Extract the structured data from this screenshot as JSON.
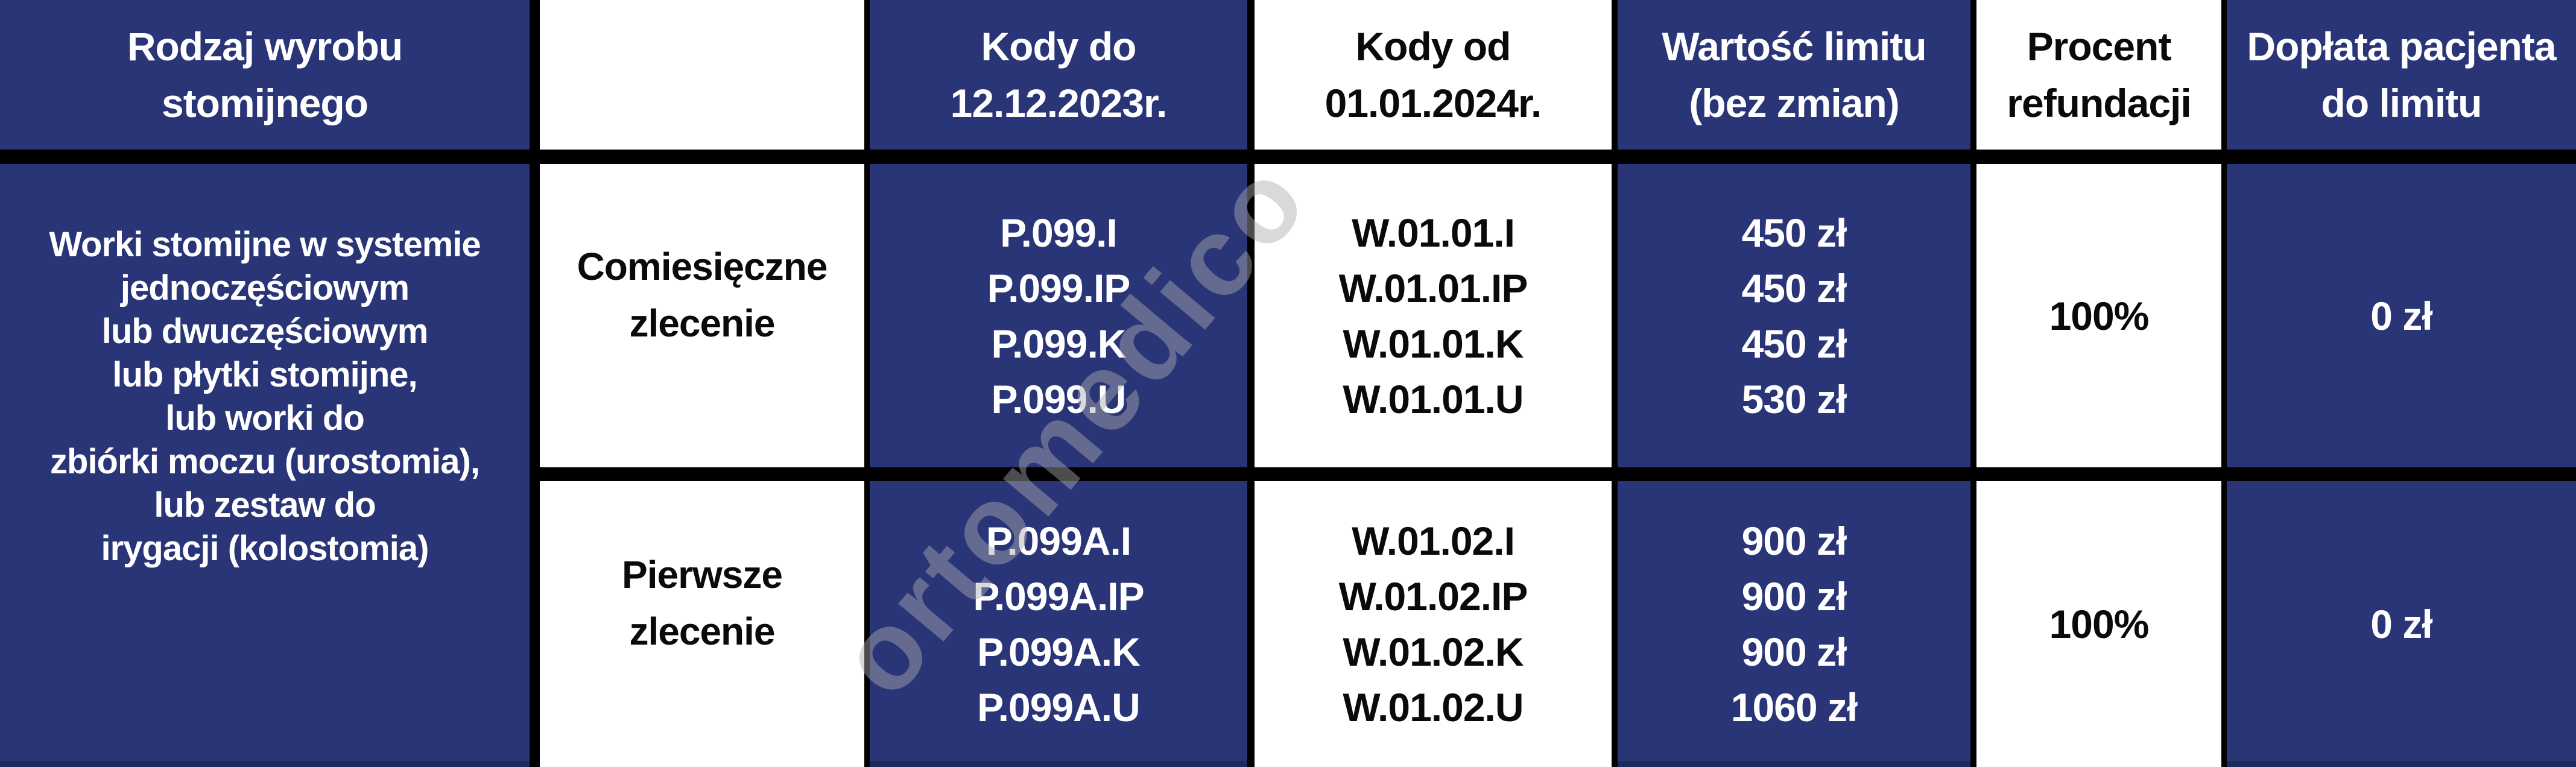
{
  "colors": {
    "cell_blue": "#2a3577",
    "cell_blue_dark_edge": "#1c2a5c",
    "border_black": "#000000",
    "text_white": "#ffffff",
    "text_black": "#0a0a0a",
    "watermark_gray": "#aaaaaf"
  },
  "watermark": {
    "text": "ortomedico"
  },
  "table": {
    "headers": {
      "product_type": "Rodzaj wyrobu\nstomijnego",
      "order_type": "",
      "codes_old": "Kody do\n12.12.2023r.",
      "codes_new": "Kody od\n01.01.2024r.",
      "limit_value": "Wartość limitu\n(bez zmian)",
      "refund_percent": "Procent\nrefundacji",
      "patient_copay": "Dopłata pacjenta\ndo limitu"
    },
    "product_type_lines": [
      "Worki stomijne w systemie",
      "jednoczęściowym",
      "lub dwuczęściowym",
      "lub płytki stomijne,",
      "lub worki do",
      "zbiórki moczu (urostomia),",
      "lub zestaw do",
      "irygacji (kolostomia)"
    ],
    "rows": [
      {
        "order_type": "Comiesięczne\nzlecenie",
        "codes_old": [
          "P.099.I",
          "P.099.IP",
          "P.099.K",
          "P.099.U"
        ],
        "codes_new": [
          "W.01.01.I",
          "W.01.01.IP",
          "W.01.01.K",
          "W.01.01.U"
        ],
        "limit_values": [
          "450 zł",
          "450 zł",
          "450 zł",
          "530 zł"
        ],
        "refund_percent": "100%",
        "patient_copay": "0 zł"
      },
      {
        "order_type": "Pierwsze\nzlecenie",
        "codes_old": [
          "P.099A.I",
          "P.099A.IP",
          "P.099A.K",
          "P.099A.U"
        ],
        "codes_new": [
          "W.01.02.I",
          "W.01.02.IP",
          "W.01.02.K",
          "W.01.02.U"
        ],
        "limit_values": [
          "900 zł",
          "900 zł",
          "900 zł",
          "1060 zł"
        ],
        "refund_percent": "100%",
        "patient_copay": "0 zł"
      }
    ]
  },
  "chart_data": {
    "type": "table",
    "columns": [
      "Rodzaj wyrobu stomijnego",
      "",
      "Kody do 12.12.2023r.",
      "Kody od 01.01.2024r.",
      "Wartość limitu (bez zmian)",
      "Procent refundacji",
      "Dopłata pacjenta do limitu"
    ],
    "rows": [
      [
        "Worki stomijne w systemie jednoczęściowym lub dwuczęściowym lub płytki stomijne, lub worki do zbiórki moczu (urostomia), lub zestaw do irygacji (kolostomia)",
        "Comiesięczne zlecenie",
        "P.099.I / P.099.IP / P.099.K / P.099.U",
        "W.01.01.I / W.01.01.IP / W.01.01.K / W.01.01.U",
        "450 zł / 450 zł / 450 zł / 530 zł",
        "100%",
        "0 zł"
      ],
      [
        "Worki stomijne w systemie jednoczęściowym lub dwuczęściowym lub płytki stomijne, lub worki do zbiórki moczu (urostomia), lub zestaw do irygacji (kolostomia)",
        "Pierwsze zlecenie",
        "P.099A.I / P.099A.IP / P.099A.K / P.099A.U",
        "W.01.02.I / W.01.02.IP / W.01.02.K / W.01.02.U",
        "900 zł / 900 zł / 900 zł / 1060 zł",
        "100%",
        "0 zł"
      ]
    ],
    "layout": "column 1 spans both body rows; blue/white alternating columns; thick black grid borders"
  }
}
